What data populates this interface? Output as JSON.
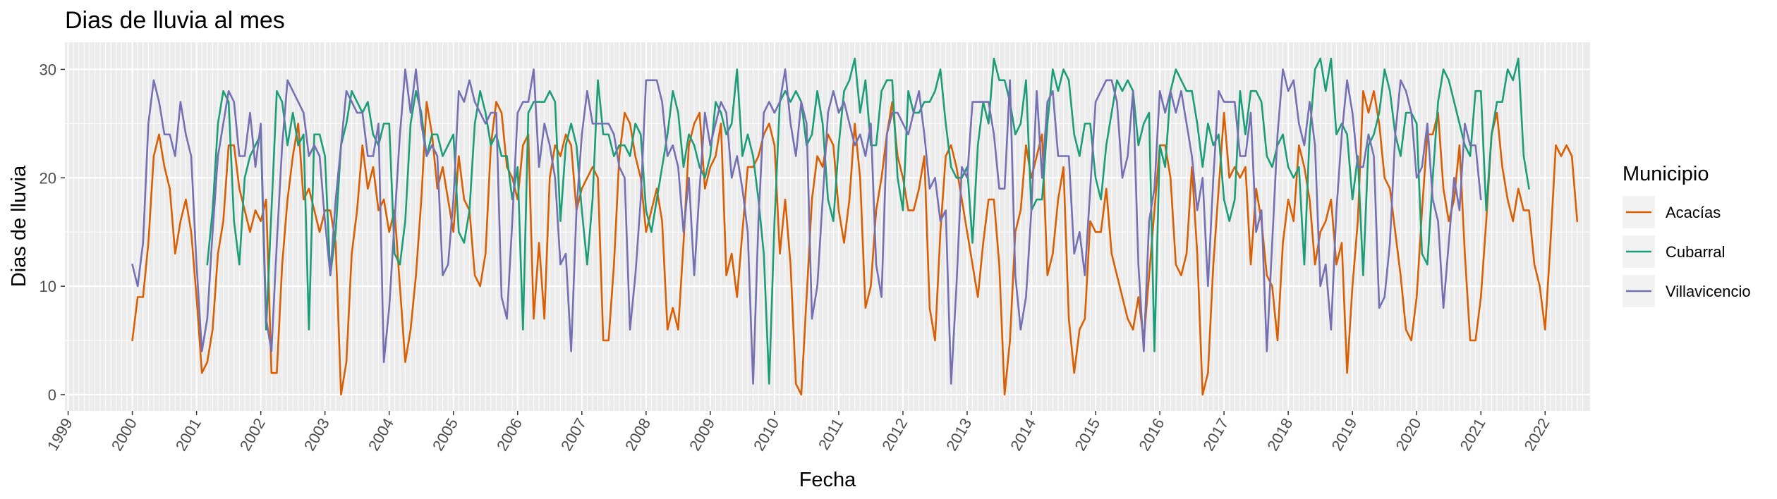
{
  "chart_data": {
    "type": "line",
    "title": "Dias de lluvia al mes",
    "xlabel": "Fecha",
    "ylabel": "Dias de lluvia",
    "x_range": [
      "1998-12",
      "2022-08"
    ],
    "xlim": [
      1998.95,
      2022.7
    ],
    "ylim": [
      -1.5,
      32.5
    ],
    "x_ticks": [
      "1999",
      "2000",
      "2001",
      "2002",
      "2003",
      "2004",
      "2005",
      "2006",
      "2007",
      "2008",
      "2009",
      "2010",
      "2011",
      "2012",
      "2013",
      "2014",
      "2015",
      "2016",
      "2017",
      "2018",
      "2019",
      "2020",
      "2021",
      "2022"
    ],
    "y_ticks": [
      "0",
      "10",
      "20",
      "30"
    ],
    "y_tick_values": [
      0,
      10,
      20,
      30
    ],
    "grid": true,
    "x_start_month": "2000-01",
    "legend": {
      "title": "Municipio",
      "placement": "right"
    },
    "series": [
      {
        "name": "Acacías",
        "color": "#D95F02",
        "start": "2000-01",
        "values": [
          5,
          9,
          9,
          14,
          22,
          24,
          21,
          19,
          13,
          16,
          18,
          15,
          9,
          2,
          3,
          6,
          13,
          16,
          23,
          23,
          19,
          17,
          15,
          17,
          16,
          18,
          2,
          2,
          12,
          18,
          22,
          25,
          18,
          19,
          17,
          15,
          17,
          17,
          14,
          0,
          3,
          13,
          17,
          23,
          19,
          21,
          17,
          18,
          15,
          17,
          10,
          3,
          6,
          11,
          18,
          27,
          24,
          19,
          21,
          18,
          15,
          22,
          18,
          17,
          11,
          10,
          13,
          23,
          27,
          26,
          21,
          20,
          18,
          23,
          24,
          7,
          14,
          7,
          20,
          23,
          22,
          24,
          23,
          17,
          19,
          20,
          21,
          20,
          5,
          5,
          12,
          22,
          26,
          25,
          22,
          20,
          15,
          17,
          19,
          16,
          6,
          8,
          6,
          14,
          23,
          25,
          26,
          19,
          21,
          22,
          25,
          11,
          13,
          9,
          15,
          21,
          21,
          22,
          24,
          25,
          23,
          13,
          18,
          12,
          1,
          0,
          9,
          18,
          22,
          21,
          24,
          23,
          17,
          14,
          18,
          25,
          20,
          8,
          10,
          17,
          20,
          24,
          27,
          22,
          20,
          17,
          17,
          19,
          22,
          8,
          5,
          15,
          22,
          23,
          21,
          18,
          15,
          12,
          9,
          14,
          18,
          18,
          12,
          0,
          5,
          15,
          17,
          23,
          20,
          22,
          24,
          11,
          13,
          18,
          21,
          7,
          2,
          6,
          7,
          16,
          15,
          15,
          19,
          13,
          11,
          9,
          7,
          6,
          9,
          5,
          11,
          17,
          23,
          23,
          20,
          12,
          11,
          13,
          21,
          13,
          0,
          2,
          12,
          19,
          26,
          20,
          21,
          20,
          21,
          12,
          19,
          16,
          11,
          10,
          5,
          14,
          18,
          16,
          23,
          21,
          18,
          12,
          15,
          16,
          18,
          12,
          14,
          2,
          10,
          16,
          28,
          26,
          28,
          25,
          20,
          19,
          15,
          11,
          6,
          5,
          9,
          17,
          24,
          24,
          26,
          19,
          16,
          18,
          23,
          13,
          5,
          5,
          9,
          16,
          24,
          26,
          21,
          18,
          16,
          19,
          17,
          17,
          12,
          10,
          6,
          14,
          23,
          22,
          23,
          22,
          16
        ]
      },
      {
        "name": "Cubarral",
        "color": "#1B9E77",
        "start": "2001-03",
        "values": [
          12,
          17,
          25,
          28,
          27,
          16,
          12,
          20,
          22,
          23,
          24,
          6,
          17,
          28,
          27,
          23,
          26,
          23,
          24,
          6,
          24,
          24,
          22,
          11,
          15,
          23,
          25,
          28,
          27,
          26,
          27,
          24,
          23,
          25,
          25,
          13,
          12,
          16,
          25,
          28,
          26,
          22,
          24,
          24,
          22,
          23,
          24,
          15,
          14,
          17,
          25,
          28,
          26,
          23,
          24,
          22,
          22,
          18,
          21,
          6,
          26,
          27,
          27,
          27,
          28,
          27,
          16,
          23,
          25,
          23,
          17,
          12,
          18,
          29,
          24,
          24,
          22,
          23,
          23,
          22,
          25,
          24,
          17,
          15,
          18,
          21,
          24,
          28,
          26,
          21,
          24,
          23,
          21,
          20,
          22,
          27,
          26,
          24,
          25,
          30,
          22,
          24,
          22,
          18,
          13,
          1,
          16,
          27,
          28,
          27,
          28,
          27,
          23,
          24,
          28,
          25,
          18,
          16,
          23,
          28,
          29,
          31,
          26,
          29,
          23,
          23,
          28,
          29,
          29,
          20,
          17,
          28,
          26,
          26,
          27,
          27,
          28,
          30,
          25,
          21,
          20,
          20,
          21,
          14,
          23,
          27,
          25,
          31,
          29,
          29,
          27,
          24,
          25,
          29,
          17,
          18,
          18,
          25,
          30,
          28,
          30,
          29,
          24,
          22,
          25,
          25,
          20,
          18,
          23,
          26,
          29,
          28,
          29,
          28,
          23,
          25,
          26,
          4,
          23,
          21,
          28,
          30,
          29,
          28,
          28,
          25,
          21,
          25,
          23,
          24,
          18,
          16,
          18,
          28,
          24,
          28,
          28,
          27,
          22,
          21,
          23,
          24,
          21,
          20,
          21,
          12,
          24,
          30,
          31,
          28,
          31,
          24,
          25,
          24,
          18,
          22,
          11,
          23,
          24,
          26,
          30,
          28,
          24,
          22,
          26,
          26,
          25,
          13,
          12,
          20,
          27,
          30,
          29,
          27,
          25,
          23,
          22,
          28,
          28,
          17,
          24,
          27,
          27,
          30,
          29,
          31,
          22,
          19
        ]
      },
      {
        "name": "Villavicencio",
        "color": "#7570B3",
        "start": "2000-01",
        "values": [
          12,
          10,
          14,
          25,
          29,
          27,
          24,
          24,
          22,
          27,
          24,
          22,
          12,
          4,
          7,
          15,
          22,
          25,
          28,
          27,
          22,
          22,
          26,
          21,
          25,
          7,
          4,
          14,
          23,
          29,
          28,
          27,
          26,
          22,
          23,
          22,
          16,
          11,
          18,
          23,
          28,
          27,
          26,
          26,
          22,
          22,
          25,
          3,
          8,
          16,
          24,
          30,
          26,
          30,
          25,
          22,
          23,
          22,
          11,
          12,
          18,
          28,
          27,
          29,
          27,
          26,
          25,
          26,
          26,
          9,
          7,
          16,
          26,
          27,
          27,
          30,
          21,
          25,
          23,
          20,
          12,
          13,
          4,
          17,
          24,
          28,
          25,
          25,
          25,
          25,
          24,
          21,
          20,
          6,
          11,
          18,
          29,
          29,
          29,
          27,
          22,
          23,
          21,
          15,
          20,
          11,
          19,
          26,
          23,
          25,
          27,
          26,
          20,
          22,
          19,
          15,
          1,
          16,
          26,
          27,
          26,
          27,
          30,
          25,
          22,
          27,
          25,
          7,
          10,
          18,
          26,
          28,
          26,
          27,
          25,
          23,
          24,
          22,
          25,
          12,
          9,
          24,
          26,
          26,
          25,
          24,
          26,
          28,
          24,
          19,
          20,
          16,
          17,
          1,
          10,
          21,
          20,
          27,
          27,
          27,
          27,
          24,
          19,
          19,
          29,
          11,
          6,
          9,
          17,
          28,
          20,
          27,
          28,
          22,
          22,
          22,
          13,
          15,
          11,
          19,
          27,
          28,
          29,
          29,
          27,
          20,
          22,
          28,
          12,
          4,
          16,
          19,
          28,
          26,
          28,
          26,
          28,
          25,
          22,
          17,
          20,
          10,
          20,
          28,
          27,
          27,
          27,
          22,
          22,
          26,
          15,
          17,
          4,
          14,
          24,
          30,
          28,
          29,
          25,
          23,
          27,
          23,
          10,
          12,
          6,
          17,
          24,
          29,
          26,
          21,
          21,
          24,
          22,
          8,
          9,
          14,
          24,
          29,
          28,
          26,
          20,
          21,
          25,
          18,
          16,
          8,
          14,
          20,
          17,
          25,
          23,
          23,
          18
        ]
      }
    ]
  }
}
